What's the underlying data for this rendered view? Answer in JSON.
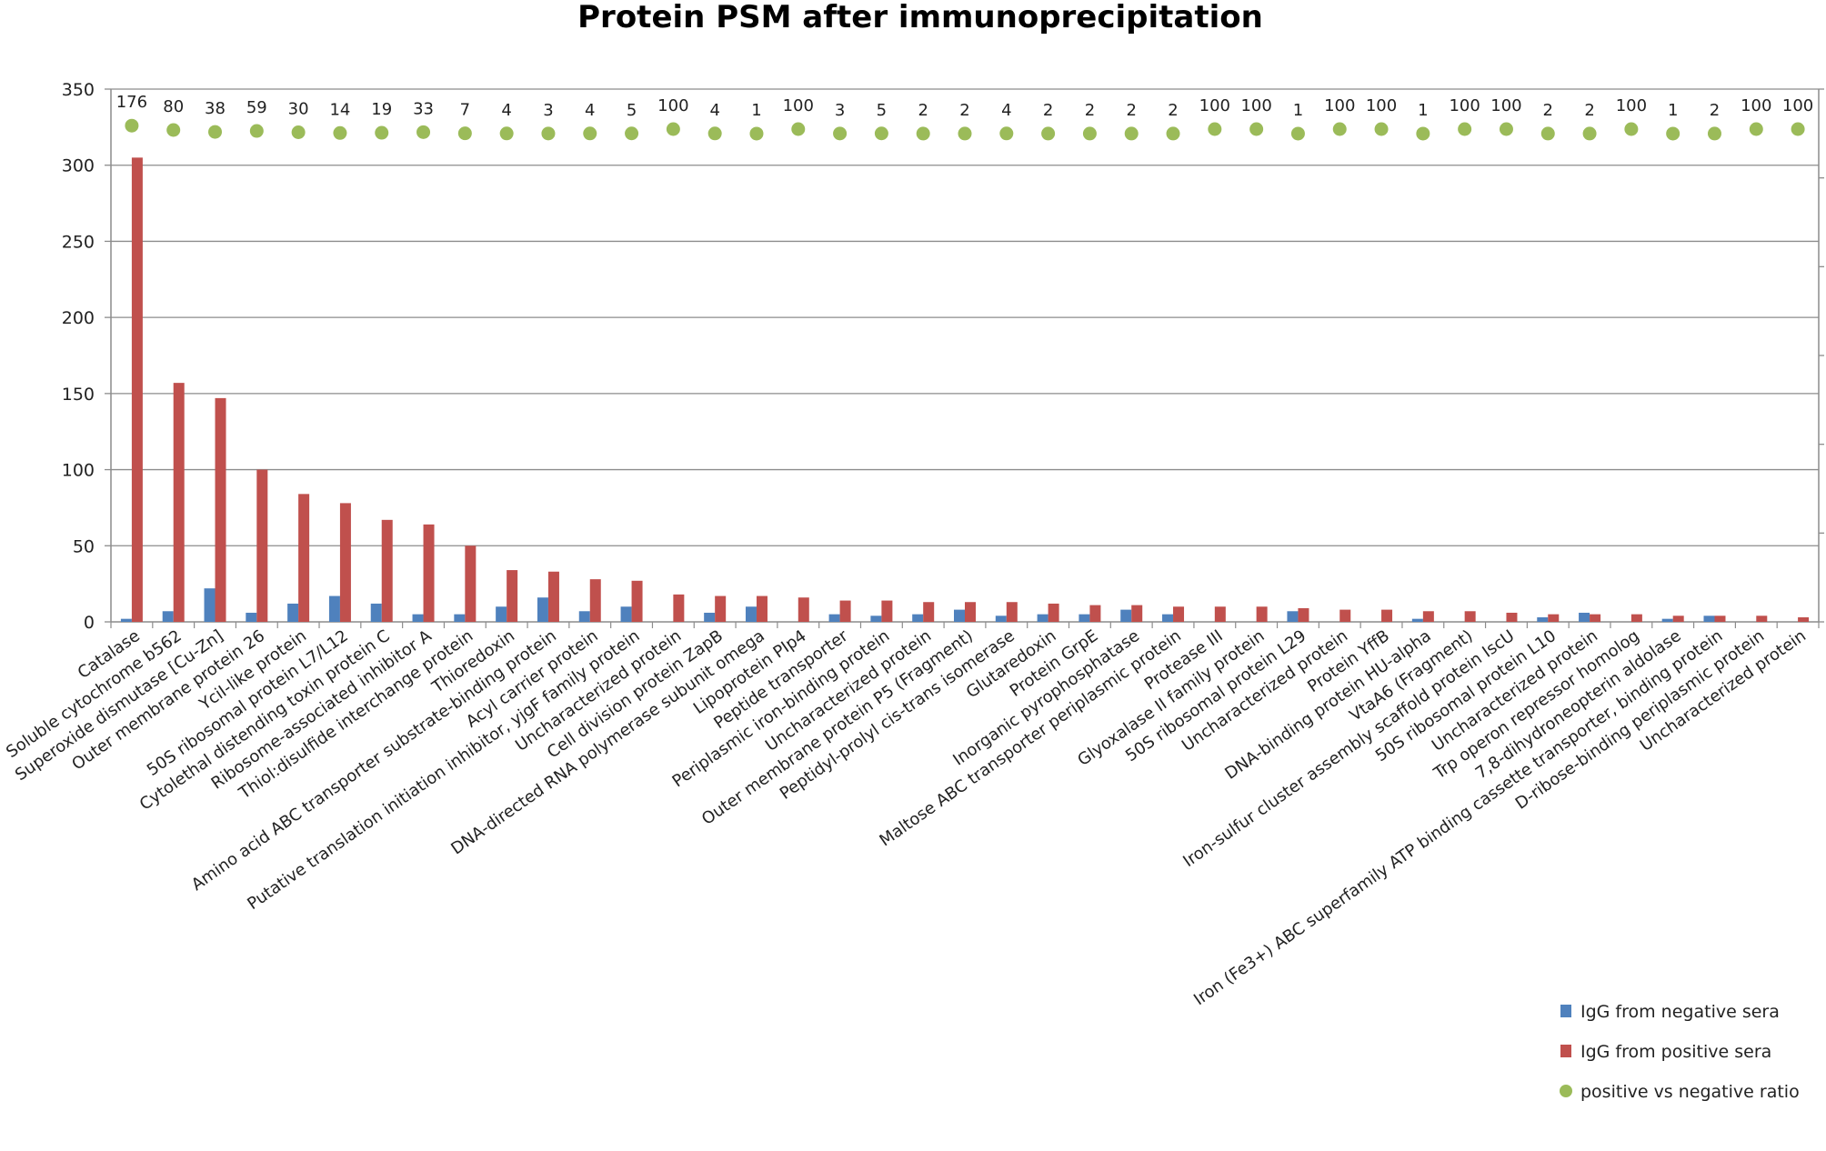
{
  "chart_data": {
    "type": "bar",
    "title": "Protein PSM after immunoprecipitation",
    "xlabel": "",
    "ylabel": "",
    "ylim": [
      0,
      350
    ],
    "yticks": [
      0,
      50,
      100,
      150,
      200,
      250,
      300,
      350
    ],
    "grid": true,
    "legend_position": "bottom-right",
    "categories": [
      "Catalase",
      "Soluble cytochrome b562",
      "Superoxide dismutase [Cu-Zn]",
      "Outer membrane protein 26",
      "YciI-like protein",
      "50S ribosomal protein L7/L12",
      "Cytolethal distending toxin protein C",
      "Ribosome-associated inhibitor A",
      "Thiol:disulfide interchange protein",
      "Thioredoxin",
      "Amino acid ABC transporter substrate-binding protein",
      "Acyl carrier protein",
      "Putative translation initiation inhibitor, yjgF family protein",
      "Uncharacterized protein",
      "Cell division protein ZapB",
      "DNA-directed RNA polymerase subunit omega",
      "Lipoprotein PIp4",
      "Peptide transporter",
      "Periplasmic iron-binding protein",
      "Uncharacterized protein",
      "Outer membrane protein P5 (Fragment)",
      "Peptidyl-prolyl cis-trans isomerase",
      "Glutaredoxin",
      "Protein GrpE",
      "Inorganic pyrophosphatase",
      "Maltose ABC transporter periplasmic protein",
      "Protease III",
      "Glyoxalase II family protein",
      "50S ribosomal protein L29",
      "Uncharacterized protein",
      "Protein YffB",
      "DNA-binding protein HU-alpha",
      "VtaA6 (Fragment)",
      "Iron-sulfur cluster assembly scaffold protein IscU",
      "50S ribosomal protein L10",
      "Uncharacterized protein",
      "Trp operon repressor homolog",
      "7,8-dihydroneopterin aldolase",
      "Iron (Fe3+) ABC superfamily ATP binding cassette transporter, binding protein",
      "D-ribose-binding periplasmic protein",
      "Uncharacterized protein"
    ],
    "series": [
      {
        "name": "IgG from negative sera",
        "color": "#4f81bd",
        "values": [
          2,
          7,
          22,
          6,
          12,
          17,
          12,
          5,
          5,
          10,
          16,
          7,
          10,
          0,
          6,
          10,
          0,
          5,
          4,
          5,
          8,
          4,
          5,
          5,
          8,
          5,
          0,
          0,
          7,
          0,
          0,
          2,
          0,
          0,
          3,
          6,
          0,
          2,
          4,
          0,
          0
        ]
      },
      {
        "name": "IgG from positive sera",
        "color": "#c0504d",
        "values": [
          305,
          157,
          147,
          100,
          84,
          78,
          67,
          64,
          50,
          34,
          33,
          28,
          27,
          18,
          17,
          17,
          16,
          14,
          14,
          13,
          13,
          13,
          12,
          11,
          11,
          10,
          10,
          10,
          9,
          8,
          8,
          7,
          7,
          6,
          5,
          5,
          5,
          4,
          4,
          4,
          3
        ]
      },
      {
        "name": "positive vs negative ratio",
        "color": "#9bbb59",
        "type": "scatter",
        "values": [
          176,
          80,
          38,
          59,
          30,
          14,
          19,
          33,
          7,
          4,
          3,
          4,
          5,
          100,
          4,
          1,
          100,
          3,
          5,
          2,
          2,
          4,
          2,
          2,
          2,
          2,
          100,
          100,
          1,
          100,
          100,
          1,
          100,
          100,
          2,
          2,
          100,
          1,
          2,
          100,
          100
        ],
        "labels": [
          "176",
          "80",
          "38",
          "59",
          "30",
          "14",
          "19",
          "33",
          "7",
          "4",
          "3",
          "4",
          "5",
          "100",
          "4",
          "1",
          "100",
          "3",
          "5",
          "2",
          "2",
          "4",
          "2",
          "2",
          "2",
          "2",
          "100",
          "100",
          "1",
          "100",
          "100",
          "1",
          "100",
          "100",
          "2",
          "2",
          "100",
          "1",
          "2",
          "100",
          "100"
        ]
      }
    ]
  }
}
